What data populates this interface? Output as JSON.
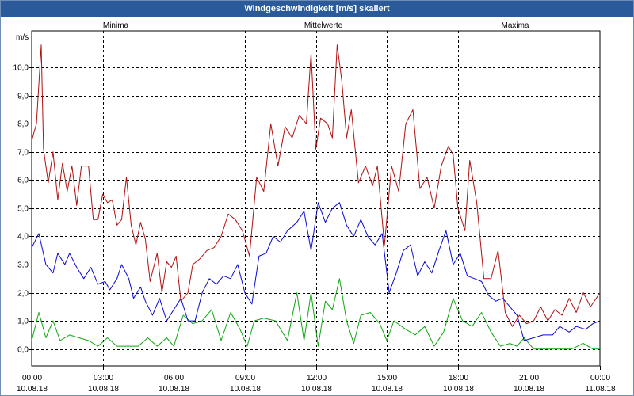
{
  "window": {
    "title": "Windgeschwindigkeit [m/s] skaliert"
  },
  "colors": {
    "minima": "#11a511",
    "mittel": "#0a0ad2",
    "maxima": "#b01010",
    "grid": "#000000",
    "titlebar": "#2a5a9a"
  },
  "chart_data": {
    "type": "line",
    "title": "Windgeschwindigkeit [m/s] skaliert",
    "ylabel": "m/s",
    "ylim": [
      -0.6,
      11.3
    ],
    "xlim_hours": [
      0,
      24
    ],
    "grid": true,
    "legend_placement": "top",
    "y_ticks": [
      "0,0",
      "1,0",
      "2,0",
      "3,0",
      "4,0",
      "5,0",
      "6,0",
      "7,0",
      "8,0",
      "9,0",
      "10,0"
    ],
    "x_ticks": [
      {
        "time": "00:00",
        "date": "10.08.18"
      },
      {
        "time": "03:00",
        "date": "10.08.18"
      },
      {
        "time": "06:00",
        "date": "10.08.18"
      },
      {
        "time": "09:00",
        "date": "10.08.18"
      },
      {
        "time": "12:00",
        "date": "10.08.18"
      },
      {
        "time": "15:00",
        "date": "10.08.18"
      },
      {
        "time": "18:00",
        "date": "10.08.18"
      },
      {
        "time": "21:00",
        "date": "10.08.18"
      },
      {
        "time": "00:00",
        "date": "11.08.18"
      }
    ],
    "series": [
      {
        "name": "Minima",
        "points": [
          [
            0,
            0.3
          ],
          [
            0.3,
            1.3
          ],
          [
            0.6,
            0.4
          ],
          [
            0.9,
            1.0
          ],
          [
            1.2,
            0.3
          ],
          [
            1.6,
            0.5
          ],
          [
            2.0,
            0.4
          ],
          [
            2.4,
            0.3
          ],
          [
            2.8,
            0.1
          ],
          [
            3.2,
            0.4
          ],
          [
            3.6,
            0.1
          ],
          [
            4.0,
            0.1
          ],
          [
            4.5,
            0.1
          ],
          [
            4.9,
            0.4
          ],
          [
            5.3,
            0.1
          ],
          [
            5.7,
            0.4
          ],
          [
            6.0,
            0.1
          ],
          [
            6.4,
            1.2
          ],
          [
            6.8,
            0.9
          ],
          [
            7.2,
            1.0
          ],
          [
            7.6,
            1.4
          ],
          [
            8.0,
            0.3
          ],
          [
            8.4,
            1.3
          ],
          [
            8.8,
            0.7
          ],
          [
            9.1,
            0.1
          ],
          [
            9.4,
            1.0
          ],
          [
            9.8,
            1.1
          ],
          [
            10.3,
            1.0
          ],
          [
            10.8,
            0.3
          ],
          [
            11.2,
            2.0
          ],
          [
            11.5,
            0.3
          ],
          [
            11.8,
            2.0
          ],
          [
            12.1,
            0.1
          ],
          [
            12.4,
            1.7
          ],
          [
            12.7,
            1.4
          ],
          [
            13.0,
            2.5
          ],
          [
            13.3,
            1.0
          ],
          [
            13.6,
            0.2
          ],
          [
            13.9,
            1.2
          ],
          [
            14.3,
            1.3
          ],
          [
            14.7,
            0.9
          ],
          [
            15.0,
            0.3
          ],
          [
            15.3,
            1.0
          ],
          [
            15.8,
            0.7
          ],
          [
            16.2,
            0.5
          ],
          [
            16.6,
            0.8
          ],
          [
            17.0,
            0.1
          ],
          [
            17.4,
            0.6
          ],
          [
            17.8,
            1.8
          ],
          [
            18.2,
            1.0
          ],
          [
            18.6,
            0.8
          ],
          [
            19.0,
            1.3
          ],
          [
            19.4,
            0.6
          ],
          [
            19.8,
            0.1
          ],
          [
            20.2,
            0.2
          ],
          [
            20.5,
            0.1
          ],
          [
            20.8,
            0.4
          ],
          [
            21.2,
            0.0
          ],
          [
            22.0,
            0.0
          ],
          [
            22.8,
            0.0
          ],
          [
            23.3,
            0.2
          ],
          [
            23.7,
            0.0
          ],
          [
            24.0,
            0.0
          ]
        ]
      },
      {
        "name": "Mittelwerte",
        "points": [
          [
            0,
            3.6
          ],
          [
            0.3,
            4.1
          ],
          [
            0.6,
            3.0
          ],
          [
            0.9,
            2.7
          ],
          [
            1.1,
            3.4
          ],
          [
            1.4,
            3.0
          ],
          [
            1.6,
            3.4
          ],
          [
            1.9,
            2.9
          ],
          [
            2.2,
            2.5
          ],
          [
            2.5,
            2.9
          ],
          [
            2.8,
            2.3
          ],
          [
            3.1,
            2.4
          ],
          [
            3.3,
            2.1
          ],
          [
            3.6,
            2.5
          ],
          [
            3.8,
            3.0
          ],
          [
            4.1,
            2.5
          ],
          [
            4.3,
            1.8
          ],
          [
            4.6,
            2.2
          ],
          [
            4.8,
            1.7
          ],
          [
            5.1,
            1.2
          ],
          [
            5.4,
            1.8
          ],
          [
            5.7,
            1.0
          ],
          [
            6.0,
            1.4
          ],
          [
            6.3,
            1.8
          ],
          [
            6.6,
            1.0
          ],
          [
            6.9,
            1.0
          ],
          [
            7.2,
            2.0
          ],
          [
            7.5,
            2.5
          ],
          [
            7.8,
            2.3
          ],
          [
            8.1,
            2.6
          ],
          [
            8.4,
            2.5
          ],
          [
            8.7,
            3.0
          ],
          [
            9.0,
            2.0
          ],
          [
            9.3,
            1.6
          ],
          [
            9.6,
            3.3
          ],
          [
            9.9,
            3.4
          ],
          [
            10.2,
            4.0
          ],
          [
            10.5,
            3.8
          ],
          [
            10.8,
            4.2
          ],
          [
            11.2,
            4.5
          ],
          [
            11.5,
            4.9
          ],
          [
            11.8,
            3.5
          ],
          [
            12.1,
            5.2
          ],
          [
            12.4,
            4.5
          ],
          [
            12.7,
            5.0
          ],
          [
            13.0,
            5.2
          ],
          [
            13.3,
            4.4
          ],
          [
            13.6,
            4.0
          ],
          [
            13.9,
            4.6
          ],
          [
            14.2,
            4.0
          ],
          [
            14.5,
            3.7
          ],
          [
            14.8,
            4.1
          ],
          [
            15.1,
            2.0
          ],
          [
            15.4,
            2.7
          ],
          [
            15.7,
            3.5
          ],
          [
            16.0,
            3.7
          ],
          [
            16.3,
            2.6
          ],
          [
            16.6,
            3.1
          ],
          [
            16.9,
            2.7
          ],
          [
            17.2,
            3.5
          ],
          [
            17.5,
            4.2
          ],
          [
            17.8,
            3.0
          ],
          [
            18.1,
            3.4
          ],
          [
            18.4,
            2.6
          ],
          [
            18.7,
            2.5
          ],
          [
            19.0,
            2.4
          ],
          [
            19.3,
            1.9
          ],
          [
            19.6,
            1.7
          ],
          [
            19.9,
            1.8
          ],
          [
            20.2,
            1.5
          ],
          [
            20.5,
            1.2
          ],
          [
            20.8,
            0.3
          ],
          [
            21.2,
            0.4
          ],
          [
            21.6,
            0.5
          ],
          [
            22.0,
            0.5
          ],
          [
            22.3,
            0.8
          ],
          [
            22.7,
            0.6
          ],
          [
            23.0,
            0.8
          ],
          [
            23.4,
            0.7
          ],
          [
            23.7,
            0.9
          ],
          [
            24.0,
            1.0
          ]
        ]
      },
      {
        "name": "Maxima",
        "points": [
          [
            0,
            7.4
          ],
          [
            0.2,
            8.0
          ],
          [
            0.4,
            10.8
          ],
          [
            0.5,
            7.1
          ],
          [
            0.7,
            5.9
          ],
          [
            0.9,
            7.0
          ],
          [
            1.1,
            5.3
          ],
          [
            1.3,
            6.6
          ],
          [
            1.5,
            5.6
          ],
          [
            1.7,
            6.5
          ],
          [
            1.9,
            5.1
          ],
          [
            2.1,
            6.5
          ],
          [
            2.4,
            6.5
          ],
          [
            2.6,
            4.6
          ],
          [
            2.8,
            4.6
          ],
          [
            3.0,
            5.5
          ],
          [
            3.2,
            5.2
          ],
          [
            3.4,
            5.3
          ],
          [
            3.6,
            4.4
          ],
          [
            3.8,
            4.6
          ],
          [
            4.0,
            6.1
          ],
          [
            4.2,
            4.4
          ],
          [
            4.4,
            3.7
          ],
          [
            4.6,
            4.5
          ],
          [
            4.8,
            3.9
          ],
          [
            5.0,
            2.4
          ],
          [
            5.3,
            3.4
          ],
          [
            5.5,
            2.0
          ],
          [
            5.7,
            3.1
          ],
          [
            5.9,
            2.9
          ],
          [
            6.1,
            3.3
          ],
          [
            6.3,
            1.7
          ],
          [
            6.6,
            2.0
          ],
          [
            6.8,
            3.0
          ],
          [
            7.1,
            3.2
          ],
          [
            7.4,
            3.5
          ],
          [
            7.7,
            3.6
          ],
          [
            8.0,
            4.0
          ],
          [
            8.3,
            4.8
          ],
          [
            8.6,
            4.6
          ],
          [
            8.9,
            4.2
          ],
          [
            9.2,
            3.3
          ],
          [
            9.5,
            6.1
          ],
          [
            9.8,
            5.6
          ],
          [
            10.1,
            8.0
          ],
          [
            10.4,
            6.5
          ],
          [
            10.7,
            7.9
          ],
          [
            11.0,
            7.5
          ],
          [
            11.3,
            8.3
          ],
          [
            11.6,
            8.0
          ],
          [
            11.8,
            10.5
          ],
          [
            12.0,
            7.1
          ],
          [
            12.2,
            8.2
          ],
          [
            12.5,
            8.0
          ],
          [
            12.7,
            7.5
          ],
          [
            12.9,
            10.8
          ],
          [
            13.1,
            9.5
          ],
          [
            13.3,
            7.5
          ],
          [
            13.5,
            8.5
          ],
          [
            13.8,
            5.9
          ],
          [
            14.1,
            6.5
          ],
          [
            14.4,
            5.8
          ],
          [
            14.6,
            6.5
          ],
          [
            14.9,
            3.7
          ],
          [
            15.2,
            6.5
          ],
          [
            15.5,
            5.6
          ],
          [
            15.8,
            8.0
          ],
          [
            16.1,
            8.5
          ],
          [
            16.4,
            5.7
          ],
          [
            16.7,
            6.1
          ],
          [
            17.0,
            5.0
          ],
          [
            17.3,
            6.5
          ],
          [
            17.6,
            7.2
          ],
          [
            17.8,
            6.9
          ],
          [
            18.0,
            5.0
          ],
          [
            18.3,
            4.2
          ],
          [
            18.5,
            6.7
          ],
          [
            18.8,
            5.2
          ],
          [
            19.1,
            2.5
          ],
          [
            19.4,
            2.5
          ],
          [
            19.7,
            3.5
          ],
          [
            20.0,
            1.3
          ],
          [
            20.3,
            0.8
          ],
          [
            20.6,
            1.2
          ],
          [
            20.9,
            0.9
          ],
          [
            21.2,
            1.0
          ],
          [
            21.5,
            1.5
          ],
          [
            21.8,
            1.0
          ],
          [
            22.1,
            1.4
          ],
          [
            22.4,
            1.2
          ],
          [
            22.7,
            1.8
          ],
          [
            23.0,
            1.3
          ],
          [
            23.3,
            2.0
          ],
          [
            23.6,
            1.5
          ],
          [
            24.0,
            2.0
          ]
        ]
      }
    ]
  }
}
